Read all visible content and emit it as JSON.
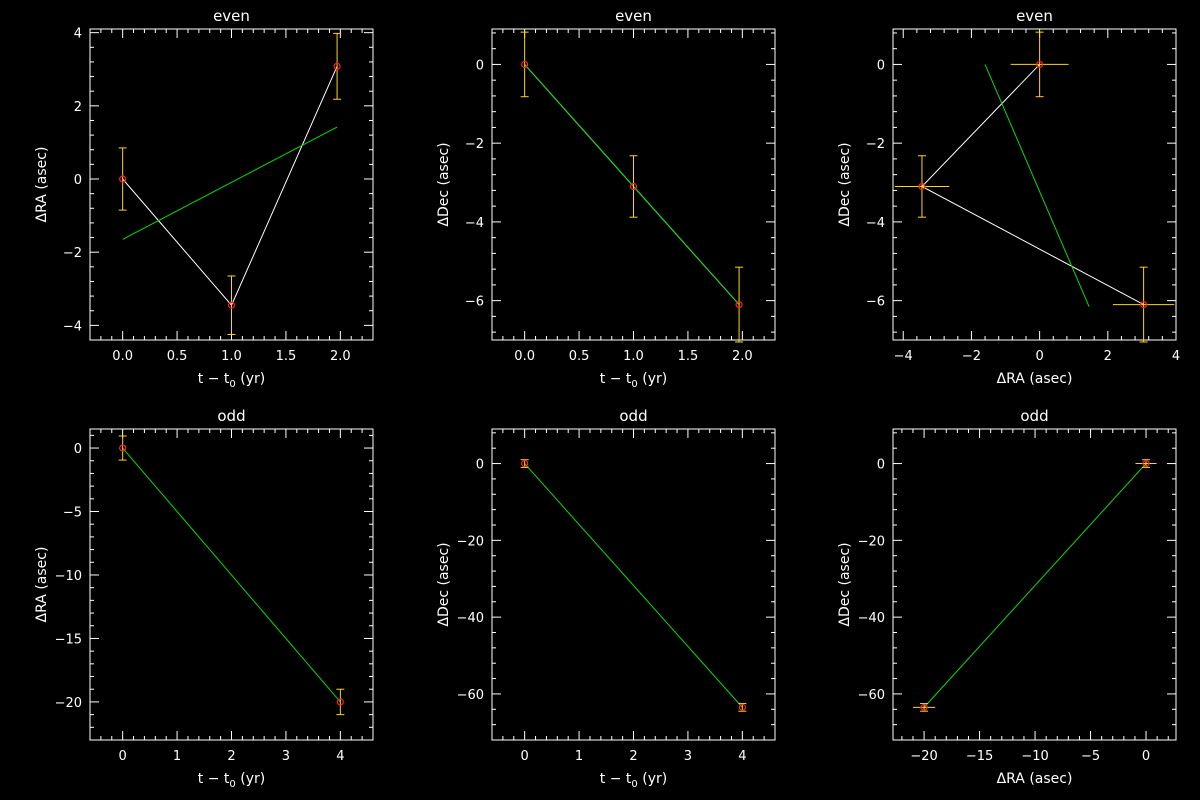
{
  "colors": {
    "background": "#000000",
    "axes": "#ffffff",
    "data_line": "#ffffff",
    "fit_line": "#00dd00",
    "error_bars": "#ffd21f",
    "markers": "#ff2020"
  },
  "chart_data": [
    {
      "type": "scatter",
      "title": "even",
      "xlabel_main": "t − t",
      "xlabel_sub": "0",
      "xlabel_tail": " (yr)",
      "ylabel_main": "ΔRA (asec)",
      "xlim": [
        -0.3,
        2.3
      ],
      "ylim": [
        -4.4,
        4.1
      ],
      "xticks": [
        0.0,
        0.5,
        1.0,
        1.5,
        2.0
      ],
      "xtick_labels": [
        "0.0",
        "0.5",
        "1.0",
        "1.5",
        "2.0"
      ],
      "yticks": [
        -4,
        -2,
        0,
        2,
        4
      ],
      "ytick_labels": [
        "−4",
        "−2",
        "0",
        "2",
        "4"
      ],
      "points": [
        {
          "x": 0.0,
          "y": 0.0,
          "xerr": 0,
          "yerr": 0.85
        },
        {
          "x": 1.0,
          "y": -3.45,
          "xerr": 0,
          "yerr": 0.8
        },
        {
          "x": 1.97,
          "y": 3.08,
          "xerr": 0,
          "yerr": 0.9
        }
      ],
      "fit": [
        [
          0.0,
          -1.65
        ],
        [
          1.97,
          1.42
        ]
      ]
    },
    {
      "type": "scatter",
      "title": "even",
      "xlabel_main": "t − t",
      "xlabel_sub": "0",
      "xlabel_tail": " (yr)",
      "ylabel_main": "ΔDec (asec)",
      "xlim": [
        -0.3,
        2.3
      ],
      "ylim": [
        -7.0,
        0.9
      ],
      "xticks": [
        0.0,
        0.5,
        1.0,
        1.5,
        2.0
      ],
      "xtick_labels": [
        "0.0",
        "0.5",
        "1.0",
        "1.5",
        "2.0"
      ],
      "yticks": [
        -6,
        -4,
        -2,
        0
      ],
      "ytick_labels": [
        "−6",
        "−4",
        "−2",
        "0"
      ],
      "points": [
        {
          "x": 0.0,
          "y": 0.0,
          "xerr": 0,
          "yerr": 0.82
        },
        {
          "x": 1.0,
          "y": -3.1,
          "xerr": 0,
          "yerr": 0.78
        },
        {
          "x": 1.97,
          "y": -6.1,
          "xerr": 0,
          "yerr": 0.95
        }
      ],
      "fit": [
        [
          0.0,
          0.0
        ],
        [
          1.97,
          -6.1
        ]
      ]
    },
    {
      "type": "scatter",
      "title": "even",
      "xlabel_main": "ΔRA (asec)",
      "xlabel_sub": "",
      "xlabel_tail": "",
      "ylabel_main": "ΔDec (asec)",
      "xlim": [
        -4.3,
        4.0
      ],
      "ylim": [
        -7.0,
        0.9
      ],
      "xticks": [
        -4,
        -2,
        0,
        2,
        4
      ],
      "xtick_labels": [
        "−4",
        "−2",
        "0",
        "2",
        "4"
      ],
      "yticks": [
        -6,
        -4,
        -2,
        0
      ],
      "ytick_labels": [
        "−6",
        "−4",
        "−2",
        "0"
      ],
      "points": [
        {
          "x": 0.0,
          "y": 0.0,
          "xerr": 0.85,
          "yerr": 0.82
        },
        {
          "x": -3.45,
          "y": -3.1,
          "xerr": 0.8,
          "yerr": 0.78
        },
        {
          "x": 3.05,
          "y": -6.1,
          "xerr": 0.9,
          "yerr": 0.95
        }
      ],
      "fit": [
        [
          -1.6,
          0.0
        ],
        [
          1.45,
          -6.15
        ]
      ]
    },
    {
      "type": "scatter",
      "title": "odd",
      "xlabel_main": "t − t",
      "xlabel_sub": "0",
      "xlabel_tail": " (yr)",
      "ylabel_main": "ΔRA (asec)",
      "xlim": [
        -0.6,
        4.6
      ],
      "ylim": [
        -23.0,
        1.5
      ],
      "xticks": [
        0,
        1,
        2,
        3,
        4
      ],
      "xtick_labels": [
        "0",
        "1",
        "2",
        "3",
        "4"
      ],
      "yticks": [
        -20,
        -15,
        -10,
        -5,
        0
      ],
      "ytick_labels": [
        "−20",
        "−15",
        "−10",
        "−5",
        "0"
      ],
      "points": [
        {
          "x": 0.0,
          "y": 0.0,
          "xerr": 0,
          "yerr": 0.95
        },
        {
          "x": 4.0,
          "y": -20.0,
          "xerr": 0,
          "yerr": 1.0
        }
      ],
      "fit": [
        [
          0.0,
          0.0
        ],
        [
          4.0,
          -20.0
        ]
      ]
    },
    {
      "type": "scatter",
      "title": "odd",
      "xlabel_main": "t − t",
      "xlabel_sub": "0",
      "xlabel_tail": " (yr)",
      "ylabel_main": "ΔDec (asec)",
      "xlim": [
        -0.6,
        4.6
      ],
      "ylim": [
        -72.0,
        9.0
      ],
      "xticks": [
        0,
        1,
        2,
        3,
        4
      ],
      "xtick_labels": [
        "0",
        "1",
        "2",
        "3",
        "4"
      ],
      "yticks": [
        -60,
        -40,
        -20,
        0
      ],
      "ytick_labels": [
        "−60",
        "−40",
        "−20",
        "0"
      ],
      "points": [
        {
          "x": 0.0,
          "y": 0.0,
          "xerr": 0,
          "yerr": 1.0
        },
        {
          "x": 4.0,
          "y": -63.5,
          "xerr": 0,
          "yerr": 1.0
        }
      ],
      "fit": [
        [
          0.0,
          0.0
        ],
        [
          4.0,
          -63.5
        ]
      ]
    },
    {
      "type": "scatter",
      "title": "odd",
      "xlabel_main": "ΔRA (asec)",
      "xlabel_sub": "",
      "xlabel_tail": "",
      "ylabel_main": "ΔDec (asec)",
      "xlim": [
        -22.8,
        2.7
      ],
      "ylim": [
        -72.0,
        9.0
      ],
      "xticks": [
        -20,
        -15,
        -10,
        -5,
        0
      ],
      "xtick_labels": [
        "−20",
        "−15",
        "−10",
        "−5",
        "0"
      ],
      "yticks": [
        -60,
        -40,
        -20,
        0
      ],
      "ytick_labels": [
        "−60",
        "−40",
        "−20",
        "0"
      ],
      "points": [
        {
          "x": 0.0,
          "y": 0.0,
          "xerr": 0.95,
          "yerr": 1.0
        },
        {
          "x": -20.0,
          "y": -63.5,
          "xerr": 1.0,
          "yerr": 1.0
        }
      ],
      "fit": [
        [
          0.0,
          0.0
        ],
        [
          -20.0,
          -63.5
        ]
      ]
    }
  ]
}
